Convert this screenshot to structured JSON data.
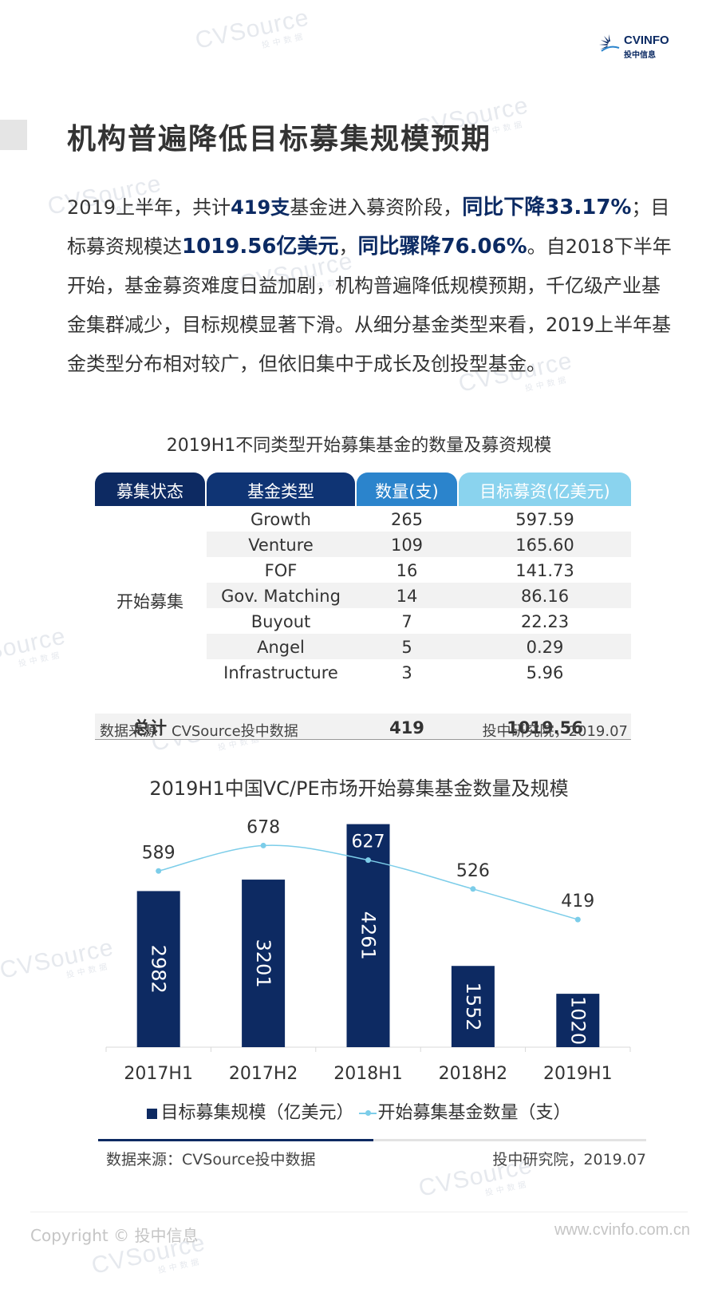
{
  "brand": {
    "name": "CVINFO",
    "sub": "投中信息",
    "watermark": "CVSource",
    "watermark_sub": "投中数据"
  },
  "title": "机构普遍降低目标募集规模预期",
  "paragraph": {
    "p1": "2019上半年，共计",
    "count": "419支",
    "p2": "基金进入募资阶段，",
    "hl1": "同比下降33.17%",
    "p3": "；目标募资规模达",
    "amount": "1019.56亿美元",
    "p4": "，",
    "hl2": "同比骤降76.06%",
    "p5": "。自2018下半年开始，基金募资难度日益加剧，机构普遍降低规模预期，千亿级产业基金集群减少，目标规模显著下滑。从细分基金类型来看，2019上半年基金类型分布相对较广，但依旧集中于成长及创投型基金。"
  },
  "table": {
    "title": "2019H1不同类型开始募集基金的数量及募资规模",
    "headers": [
      "募集状态",
      "基金类型",
      "数量(支)",
      "目标募资(亿美元)"
    ],
    "status": "开始募集",
    "rows": [
      {
        "type": "Growth",
        "count": "265",
        "amount": "597.59"
      },
      {
        "type": "Venture",
        "count": "109",
        "amount": "165.60"
      },
      {
        "type": "FOF",
        "count": "16",
        "amount": "141.73"
      },
      {
        "type": "Gov. Matching",
        "count": "14",
        "amount": "86.16"
      },
      {
        "type": "Buyout",
        "count": "7",
        "amount": "22.23"
      },
      {
        "type": "Angel",
        "count": "5",
        "amount": "0.29"
      },
      {
        "type": "Infrastructure",
        "count": "3",
        "amount": "5.96"
      }
    ],
    "total": {
      "label": "总计",
      "count": "419",
      "amount": "1019.56"
    },
    "source": "数据来源：CVSource投中数据",
    "research": "投中研究院，2019.07"
  },
  "chart_data": {
    "type": "bar",
    "title": "2019H1中国VC/PE市场开始募集基金数量及规模",
    "categories": [
      "2017H1",
      "2017H2",
      "2018H1",
      "2018H2",
      "2019H1"
    ],
    "series": [
      {
        "name": "目标募集规模（亿美元）",
        "type": "bar",
        "values": [
          2982,
          3201,
          4261,
          1552,
          1020
        ],
        "color": "#0d2a62"
      },
      {
        "name": "开始募集基金数量（支）",
        "type": "line",
        "values": [
          589,
          678,
          627,
          526,
          419
        ],
        "color": "#7ccde9"
      }
    ],
    "ylim_bar": [
      0,
      4300
    ],
    "ylim_line": [
      0,
      900
    ],
    "grid": false,
    "legend": "bottom"
  },
  "chart_footer": {
    "source": "数据来源：CVSource投中数据",
    "research": "投中研究院，2019.07"
  },
  "footer": {
    "copyright": "Copyright © 投中信息",
    "url": "www.cvinfo.com.cn"
  }
}
